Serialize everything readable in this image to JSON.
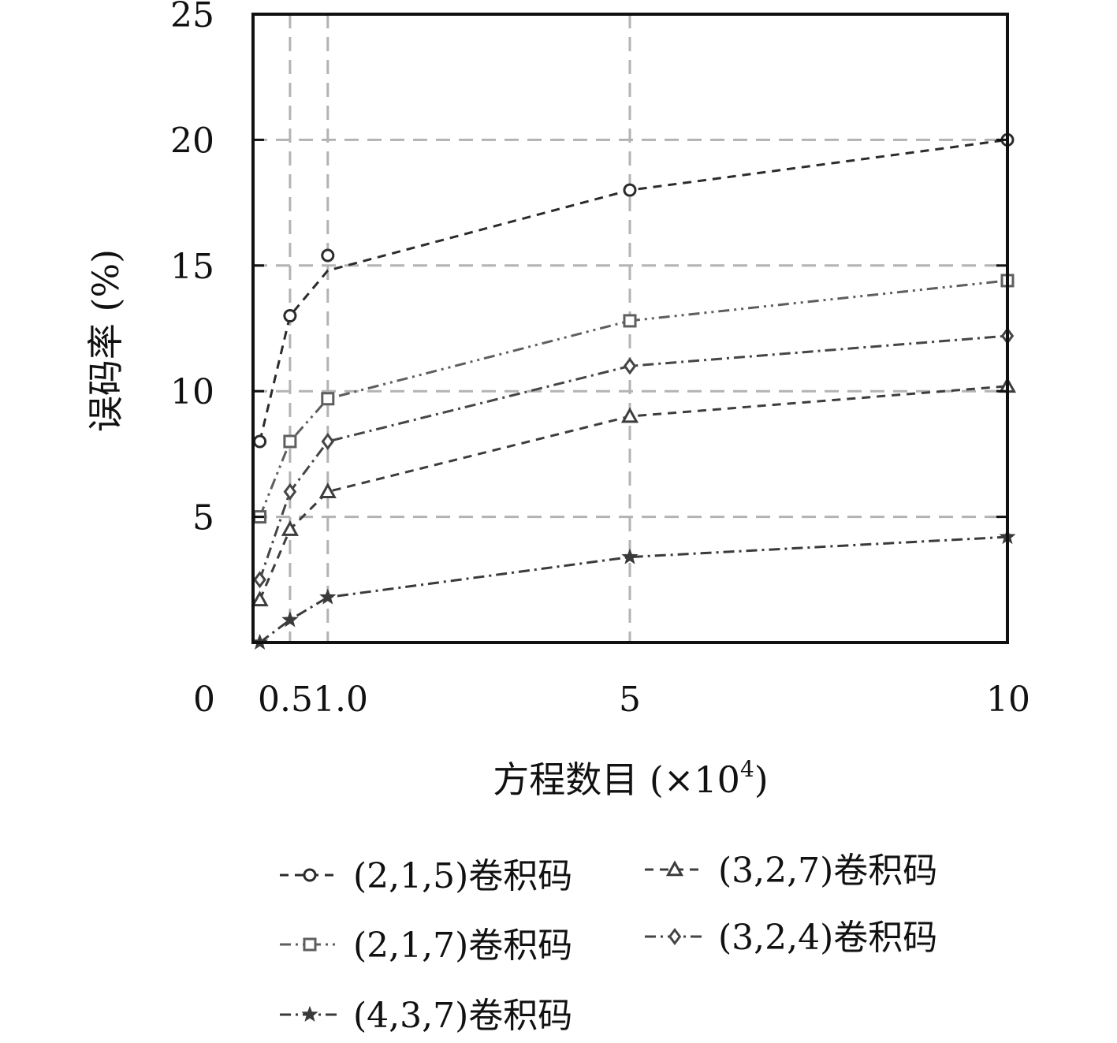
{
  "chart_data": {
    "type": "line",
    "xlabel": "方程数目 (×10",
    "xlabel_sup": "4",
    "xlabel_close": ")",
    "ylabel": "误码率 (%)",
    "xlim": [
      0,
      10
    ],
    "ylim": [
      0,
      25
    ],
    "x_ticks": [
      {
        "value": 0,
        "label": "0"
      },
      {
        "value": 0.75,
        "label": "0.51.0"
      },
      {
        "value": 5,
        "label": "5"
      },
      {
        "value": 10,
        "label": "10"
      }
    ],
    "y_ticks": [
      {
        "value": 5,
        "label": "5"
      },
      {
        "value": 10,
        "label": "10"
      },
      {
        "value": 15,
        "label": "15"
      },
      {
        "value": 20,
        "label": "20"
      },
      {
        "value": 25,
        "label": "25"
      }
    ],
    "grid": true,
    "grid_x": [
      0.5,
      1.0,
      5
    ],
    "grid_y": [
      5,
      10,
      15,
      20
    ],
    "legend_position": "bottom",
    "series": [
      {
        "name": "(2,1,5)卷积码",
        "marker": "circle",
        "dash": "dashed",
        "color": "#2b2b2b",
        "x": [
          0.1,
          0.5,
          1.0,
          5,
          10
        ],
        "y": [
          8.0,
          13.0,
          15.4,
          18.0,
          20.0
        ],
        "line_y": [
          8.0,
          13.0,
          14.8,
          18.0,
          20.0
        ]
      },
      {
        "name": "(3,2,7)卷积码",
        "marker": "triangle",
        "dash": "dashed",
        "color": "#3d3d3d",
        "x": [
          0.1,
          0.5,
          1.0,
          5,
          10
        ],
        "y": [
          1.7,
          4.5,
          6.0,
          9.0,
          10.2
        ]
      },
      {
        "name": "(2,1,7)卷积码",
        "marker": "square",
        "dash": "dashdotdot",
        "color": "#5e5e5e",
        "x": [
          0.1,
          0.5,
          1.0,
          5,
          10
        ],
        "y": [
          5.0,
          8.0,
          9.7,
          12.8,
          14.4
        ]
      },
      {
        "name": "(3,2,4)卷积码",
        "marker": "diamond",
        "dash": "dashdot",
        "color": "#454545",
        "x": [
          0.1,
          0.5,
          1.0,
          5,
          10
        ],
        "y": [
          2.5,
          6.0,
          8.0,
          11.0,
          12.2
        ]
      },
      {
        "name": "(4,3,7)卷积码",
        "marker": "star",
        "dash": "dashdot",
        "color": "#3a3a3a",
        "x": [
          0.1,
          0.5,
          1.0,
          5,
          10
        ],
        "y": [
          0.0,
          0.9,
          1.8,
          3.4,
          4.2
        ]
      }
    ]
  }
}
